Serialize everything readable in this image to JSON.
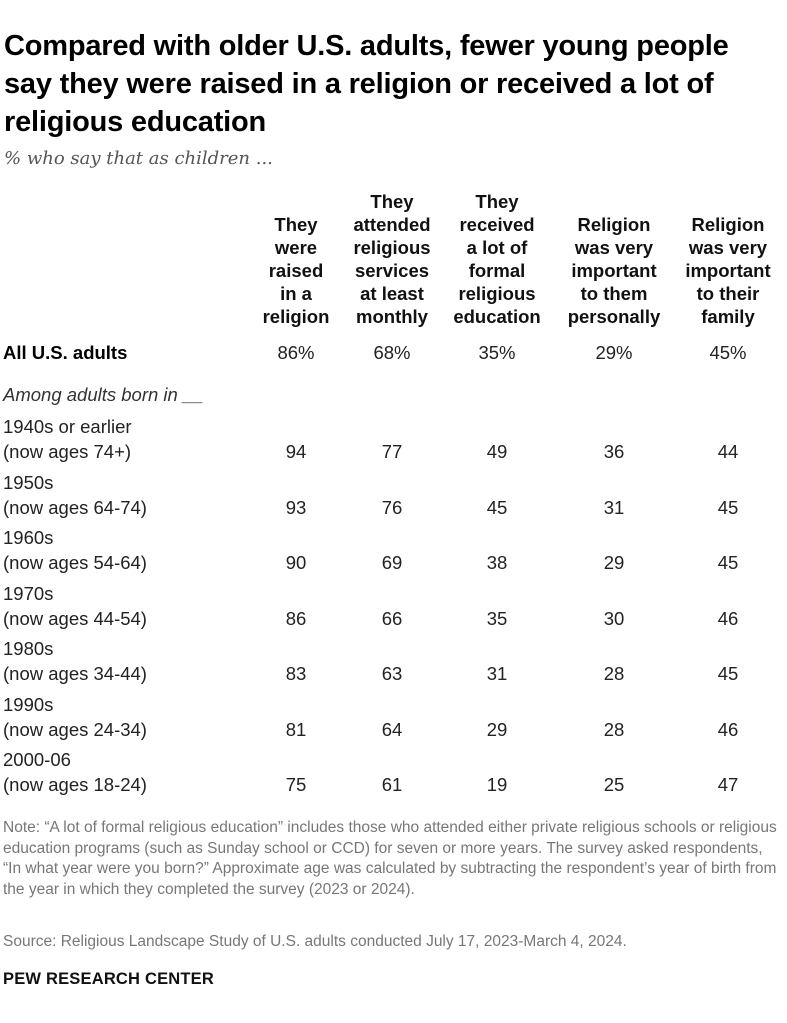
{
  "chart_data": {
    "type": "table",
    "title": "Compared with older U.S. adults, fewer young people say they were raised in a religion or received a lot of religious education",
    "subtitle": "% who say that as children ...",
    "columns": [
      [
        "They",
        "were",
        "raised",
        "in a",
        "religion"
      ],
      [
        "They",
        "attended",
        "religious",
        "services",
        "at least",
        "monthly"
      ],
      [
        "They",
        "received",
        "a lot of",
        "formal",
        "religious",
        "education"
      ],
      [
        "Religion",
        "was very",
        "important",
        "to them",
        "personally"
      ],
      [
        "Religion",
        "was very",
        "important",
        "to their",
        "family"
      ]
    ],
    "all_row": {
      "label": "All U.S. adults",
      "values": [
        "86%",
        "68%",
        "35%",
        "29%",
        "45%"
      ]
    },
    "group_label": "Among adults born in __",
    "rows": [
      {
        "label1": "1940s or earlier",
        "label2": "(now ages 74+)",
        "values": [
          94,
          77,
          49,
          36,
          44
        ]
      },
      {
        "label1": "1950s",
        "label2": "(now ages 64-74)",
        "values": [
          93,
          76,
          45,
          31,
          45
        ]
      },
      {
        "label1": "1960s",
        "label2": "(now ages 54-64)",
        "values": [
          90,
          69,
          38,
          29,
          45
        ]
      },
      {
        "label1": "1970s",
        "label2": "(now ages 44-54)",
        "values": [
          86,
          66,
          35,
          30,
          46
        ]
      },
      {
        "label1": "1980s",
        "label2": "(now ages 34-44)",
        "values": [
          83,
          63,
          31,
          28,
          45
        ]
      },
      {
        "label1": "1990s",
        "label2": "(now ages 24-34)",
        "values": [
          81,
          64,
          29,
          28,
          46
        ]
      },
      {
        "label1": "2000-06",
        "label2": "(now ages 18-24)",
        "values": [
          75,
          61,
          19,
          25,
          47
        ]
      }
    ]
  },
  "note": "Note: “A lot of formal religious education” includes those who attended either private religious schools or religious education programs (such as Sunday school or CCD) for seven or more years. The survey asked respondents, “In what year were you born?” Approximate age was calculated by subtracting the respondent’s year of birth from the year in which they completed the survey (2023 or 2024).",
  "source": "Source: Religious Landscape Study of U.S. adults conducted July 17, 2023-March 4, 2024.",
  "brand": "PEW RESEARCH CENTER"
}
